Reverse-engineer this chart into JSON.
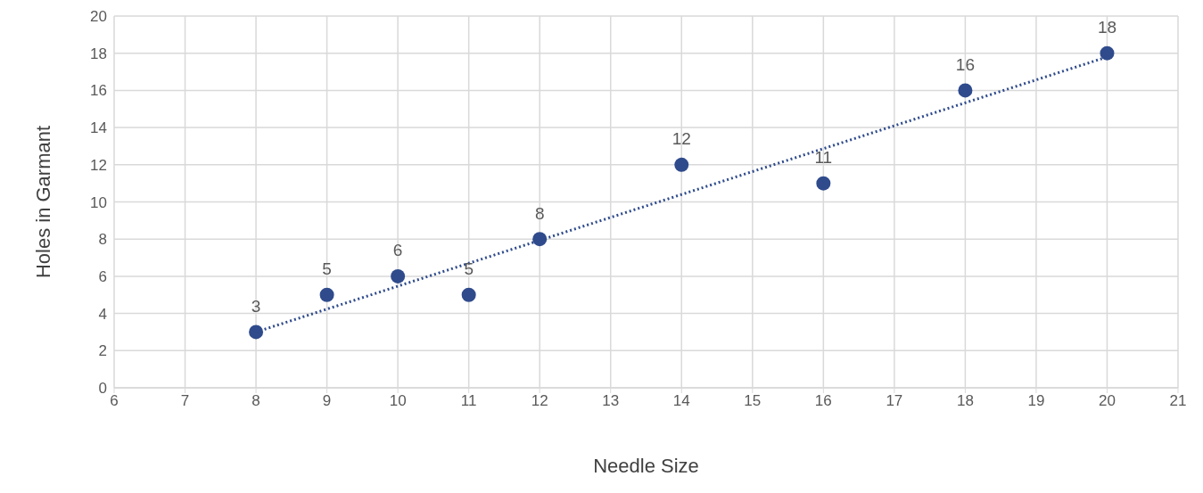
{
  "chart_data": {
    "type": "scatter",
    "xlabel": "Needle Size",
    "ylabel": "Holes in Garmant",
    "series": [
      {
        "color": "#2f4b8c",
        "marker": "circle",
        "x": [
          8,
          9,
          10,
          11,
          12,
          14,
          16,
          18,
          20
        ],
        "values": [
          3,
          5,
          6,
          5,
          8,
          12,
          11,
          16,
          18
        ],
        "value_labels": [
          "3",
          "5",
          "6",
          "5",
          "8",
          "12",
          "11",
          "16",
          "18"
        ]
      },
      {
        "type": "line",
        "color": "#2f4b8c",
        "marker": "none",
        "line_style": "dotted",
        "x": [
          8,
          20
        ],
        "values": [
          3.0,
          17.8
        ]
      }
    ],
    "xlim": [
      6,
      21
    ],
    "xticks": [
      6,
      7,
      8,
      9,
      10,
      11,
      12,
      13,
      14,
      15,
      16,
      17,
      18,
      19,
      20,
      21
    ],
    "ylim": [
      0,
      20
    ],
    "yticks": [
      0,
      2,
      4,
      6,
      8,
      10,
      12,
      14,
      16,
      18,
      20
    ],
    "grid": true
  }
}
